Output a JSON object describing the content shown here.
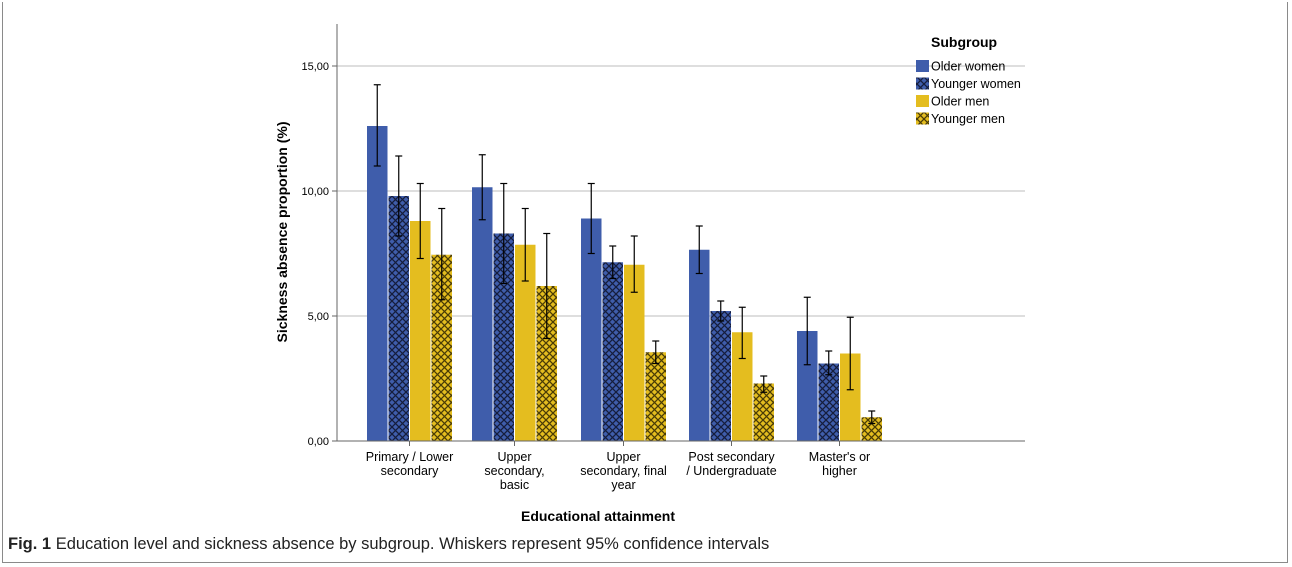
{
  "caption": {
    "label": "Fig. 1",
    "text": "Education level and sickness absence by subgroup. Whiskers represent 95% confidence intervals"
  },
  "chart_data": {
    "type": "bar",
    "title": "",
    "xlabel": "Educational attainment",
    "ylabel": "Sickness absence proportion (%)",
    "ylim": [
      0,
      16.5
    ],
    "yticks": [
      0,
      5,
      10,
      15
    ],
    "ytick_labels": [
      "0,00",
      "5,00",
      "10,00",
      "15,00"
    ],
    "grid": "horizontal",
    "legend_title": "Subgroup",
    "legend_position": "top-right",
    "categories": [
      [
        "Primary / Lower",
        "secondary"
      ],
      [
        "Upper",
        "secondary,",
        "basic"
      ],
      [
        "Upper",
        "secondary, final",
        "year"
      ],
      [
        "Post secondary",
        "/ Undergraduate"
      ],
      [
        "Master's or",
        "higher"
      ]
    ],
    "series": [
      {
        "name": "Older women",
        "color": "#3f5dab",
        "pattern": "solid",
        "values": [
          12.6,
          10.15,
          8.9,
          7.65,
          4.4
        ],
        "ci_low": [
          11.0,
          8.85,
          7.5,
          6.7,
          3.05
        ],
        "ci_high": [
          14.25,
          11.45,
          10.3,
          8.6,
          5.75
        ]
      },
      {
        "name": "Younger women",
        "color": "#3f5dab",
        "pattern": "crosshatch",
        "values": [
          9.8,
          8.3,
          7.15,
          5.2,
          3.1
        ],
        "ci_low": [
          8.2,
          6.3,
          6.5,
          4.8,
          2.65
        ],
        "ci_high": [
          11.4,
          10.3,
          7.8,
          5.6,
          3.6
        ]
      },
      {
        "name": "Older men",
        "color": "#e4bd1f",
        "pattern": "solid",
        "values": [
          8.8,
          7.85,
          7.05,
          4.35,
          3.5
        ],
        "ci_low": [
          7.3,
          6.4,
          5.95,
          3.3,
          2.05
        ],
        "ci_high": [
          10.3,
          9.3,
          8.2,
          5.35,
          4.95
        ]
      },
      {
        "name": "Younger men",
        "color": "#e4bd1f",
        "pattern": "crosshatch",
        "values": [
          7.45,
          6.2,
          3.55,
          2.3,
          0.95
        ],
        "ci_low": [
          5.65,
          4.1,
          3.1,
          1.95,
          0.7
        ],
        "ci_high": [
          9.3,
          8.3,
          4.0,
          2.6,
          1.2
        ]
      }
    ]
  }
}
